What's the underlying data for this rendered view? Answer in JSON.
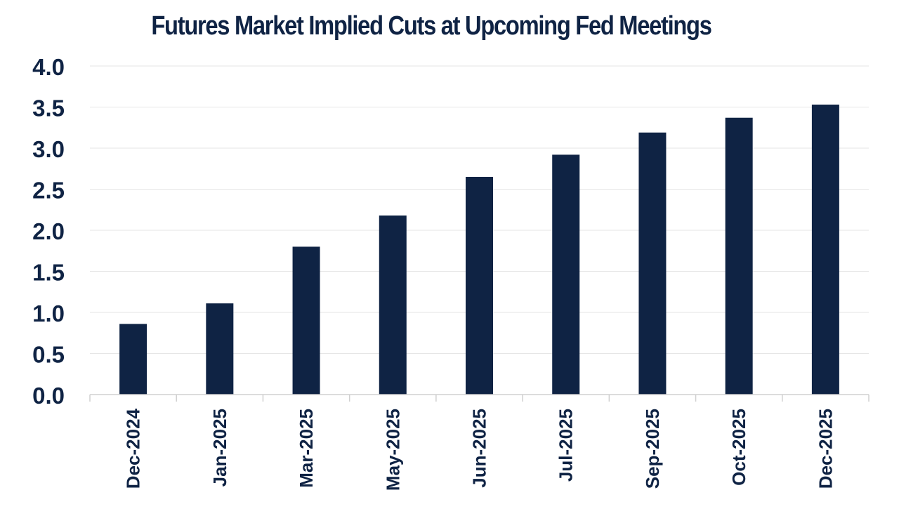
{
  "chart_data": {
    "type": "bar",
    "title": "Futures Market Implied Cuts at Upcoming Fed Meetings",
    "xlabel": "",
    "ylabel": "",
    "categories": [
      "Dec-2024",
      "Jan-2025",
      "Mar-2025",
      "May-2025",
      "Jun-2025",
      "Jul-2025",
      "Sep-2025",
      "Oct-2025",
      "Dec-2025"
    ],
    "values": [
      0.86,
      1.11,
      1.8,
      2.18,
      2.65,
      2.92,
      3.19,
      3.37,
      3.53
    ],
    "ylim": [
      0,
      4.0
    ],
    "y_ticks": [
      "0.0",
      "0.5",
      "1.0",
      "1.5",
      "2.0",
      "2.5",
      "3.0",
      "3.5",
      "4.0"
    ],
    "grid": true,
    "legend": "none",
    "colors": {
      "bar": "#0f2344",
      "text": "#0f2344",
      "grid": "#e6e6e6",
      "axis": "#d0d0d0"
    }
  }
}
